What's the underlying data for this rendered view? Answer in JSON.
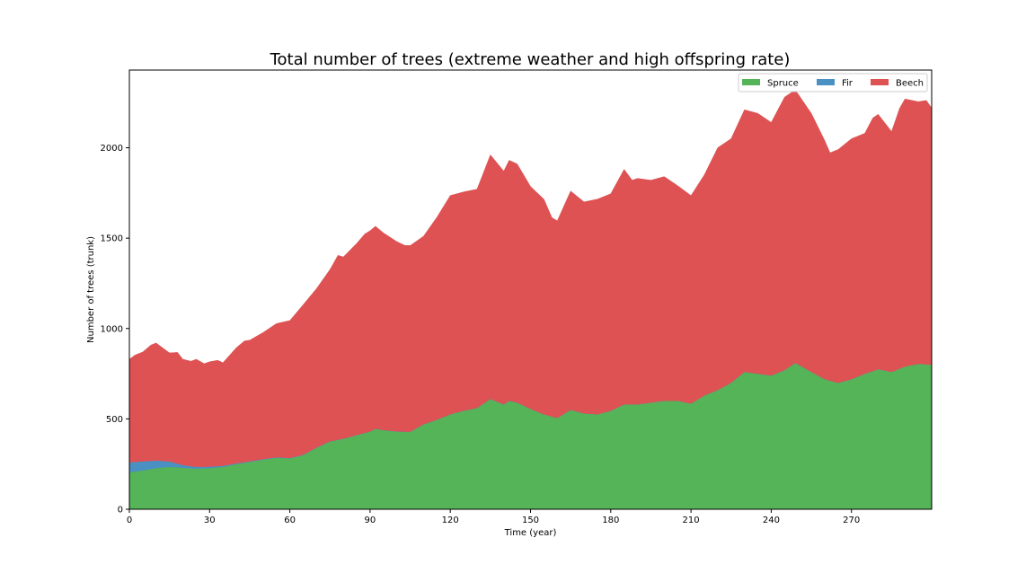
{
  "chart_data": {
    "type": "area",
    "stacked": true,
    "title": "Total number of trees (extreme weather and high offspring rate)",
    "xlabel": "Time (year)",
    "ylabel": "Number of trees (trunk)",
    "xlim": [
      0,
      300
    ],
    "ylim": [
      0,
      2430
    ],
    "xticks": [
      0,
      30,
      60,
      90,
      120,
      150,
      180,
      210,
      240,
      270
    ],
    "yticks": [
      0,
      500,
      1000,
      1500,
      2000
    ],
    "grid": false,
    "legend": {
      "placement": "top-right",
      "ncol": 3
    },
    "series": [
      {
        "name": "Spruce",
        "color": "#55b358",
        "points": [
          [
            0,
            205
          ],
          [
            5,
            215
          ],
          [
            10,
            228
          ],
          [
            15,
            235
          ],
          [
            20,
            230
          ],
          [
            25,
            225
          ],
          [
            30,
            228
          ],
          [
            35,
            235
          ],
          [
            40,
            250
          ],
          [
            45,
            262
          ],
          [
            50,
            275
          ],
          [
            55,
            285
          ],
          [
            60,
            282
          ],
          [
            65,
            300
          ],
          [
            70,
            340
          ],
          [
            75,
            375
          ],
          [
            80,
            390
          ],
          [
            85,
            410
          ],
          [
            90,
            430
          ],
          [
            92,
            445
          ],
          [
            95,
            438
          ],
          [
            100,
            430
          ],
          [
            105,
            428
          ],
          [
            110,
            470
          ],
          [
            115,
            495
          ],
          [
            120,
            525
          ],
          [
            125,
            545
          ],
          [
            130,
            560
          ],
          [
            135,
            610
          ],
          [
            140,
            580
          ],
          [
            142,
            600
          ],
          [
            145,
            590
          ],
          [
            150,
            555
          ],
          [
            155,
            525
          ],
          [
            160,
            505
          ],
          [
            165,
            550
          ],
          [
            170,
            530
          ],
          [
            175,
            525
          ],
          [
            180,
            545
          ],
          [
            185,
            580
          ],
          [
            190,
            580
          ],
          [
            195,
            590
          ],
          [
            200,
            600
          ],
          [
            205,
            600
          ],
          [
            210,
            585
          ],
          [
            215,
            630
          ],
          [
            220,
            660
          ],
          [
            225,
            700
          ],
          [
            230,
            760
          ],
          [
            235,
            750
          ],
          [
            240,
            740
          ],
          [
            245,
            770
          ],
          [
            249,
            810
          ],
          [
            255,
            760
          ],
          [
            260,
            720
          ],
          [
            265,
            700
          ],
          [
            270,
            720
          ],
          [
            275,
            750
          ],
          [
            280,
            775
          ],
          [
            285,
            760
          ],
          [
            290,
            790
          ],
          [
            295,
            805
          ],
          [
            300,
            800
          ]
        ]
      },
      {
        "name": "Fir",
        "color": "#4a90c2",
        "points": [
          [
            0,
            55
          ],
          [
            5,
            50
          ],
          [
            10,
            42
          ],
          [
            15,
            30
          ],
          [
            20,
            15
          ],
          [
            25,
            10
          ],
          [
            30,
            8
          ],
          [
            35,
            6
          ],
          [
            40,
            4
          ],
          [
            50,
            3
          ],
          [
            60,
            2
          ],
          [
            80,
            1
          ],
          [
            100,
            1
          ],
          [
            300,
            0
          ]
        ]
      },
      {
        "name": "Beech",
        "color": "#de5253",
        "points": [
          [
            0,
            570
          ],
          [
            2,
            590
          ],
          [
            5,
            605
          ],
          [
            8,
            640
          ],
          [
            10,
            650
          ],
          [
            15,
            600
          ],
          [
            18,
            615
          ],
          [
            20,
            585
          ],
          [
            23,
            580
          ],
          [
            25,
            595
          ],
          [
            28,
            570
          ],
          [
            30,
            580
          ],
          [
            33,
            585
          ],
          [
            35,
            570
          ],
          [
            40,
            640
          ],
          [
            43,
            670
          ],
          [
            45,
            670
          ],
          [
            50,
            700
          ],
          [
            55,
            740
          ],
          [
            60,
            760
          ],
          [
            65,
            830
          ],
          [
            70,
            880
          ],
          [
            75,
            950
          ],
          [
            78,
            1020
          ],
          [
            80,
            1005
          ],
          [
            85,
            1060
          ],
          [
            88,
            1100
          ],
          [
            90,
            1110
          ],
          [
            92,
            1120
          ],
          [
            95,
            1090
          ],
          [
            100,
            1050
          ],
          [
            103,
            1030
          ],
          [
            105,
            1030
          ],
          [
            110,
            1040
          ],
          [
            115,
            1120
          ],
          [
            120,
            1210
          ],
          [
            125,
            1210
          ],
          [
            130,
            1210
          ],
          [
            135,
            1350
          ],
          [
            140,
            1290
          ],
          [
            142,
            1330
          ],
          [
            145,
            1320
          ],
          [
            150,
            1230
          ],
          [
            155,
            1190
          ],
          [
            158,
            1100
          ],
          [
            160,
            1090
          ],
          [
            165,
            1210
          ],
          [
            170,
            1170
          ],
          [
            175,
            1190
          ],
          [
            180,
            1200
          ],
          [
            185,
            1300
          ],
          [
            188,
            1240
          ],
          [
            190,
            1250
          ],
          [
            195,
            1230
          ],
          [
            200,
            1240
          ],
          [
            205,
            1190
          ],
          [
            210,
            1150
          ],
          [
            215,
            1220
          ],
          [
            220,
            1340
          ],
          [
            225,
            1350
          ],
          [
            230,
            1450
          ],
          [
            235,
            1440
          ],
          [
            240,
            1400
          ],
          [
            245,
            1510
          ],
          [
            249,
            1510
          ],
          [
            255,
            1430
          ],
          [
            260,
            1320
          ],
          [
            262,
            1260
          ],
          [
            265,
            1290
          ],
          [
            270,
            1330
          ],
          [
            275,
            1330
          ],
          [
            278,
            1400
          ],
          [
            280,
            1410
          ],
          [
            285,
            1330
          ],
          [
            288,
            1440
          ],
          [
            290,
            1480
          ],
          [
            295,
            1450
          ],
          [
            298,
            1460
          ],
          [
            300,
            1420
          ]
        ]
      }
    ]
  }
}
